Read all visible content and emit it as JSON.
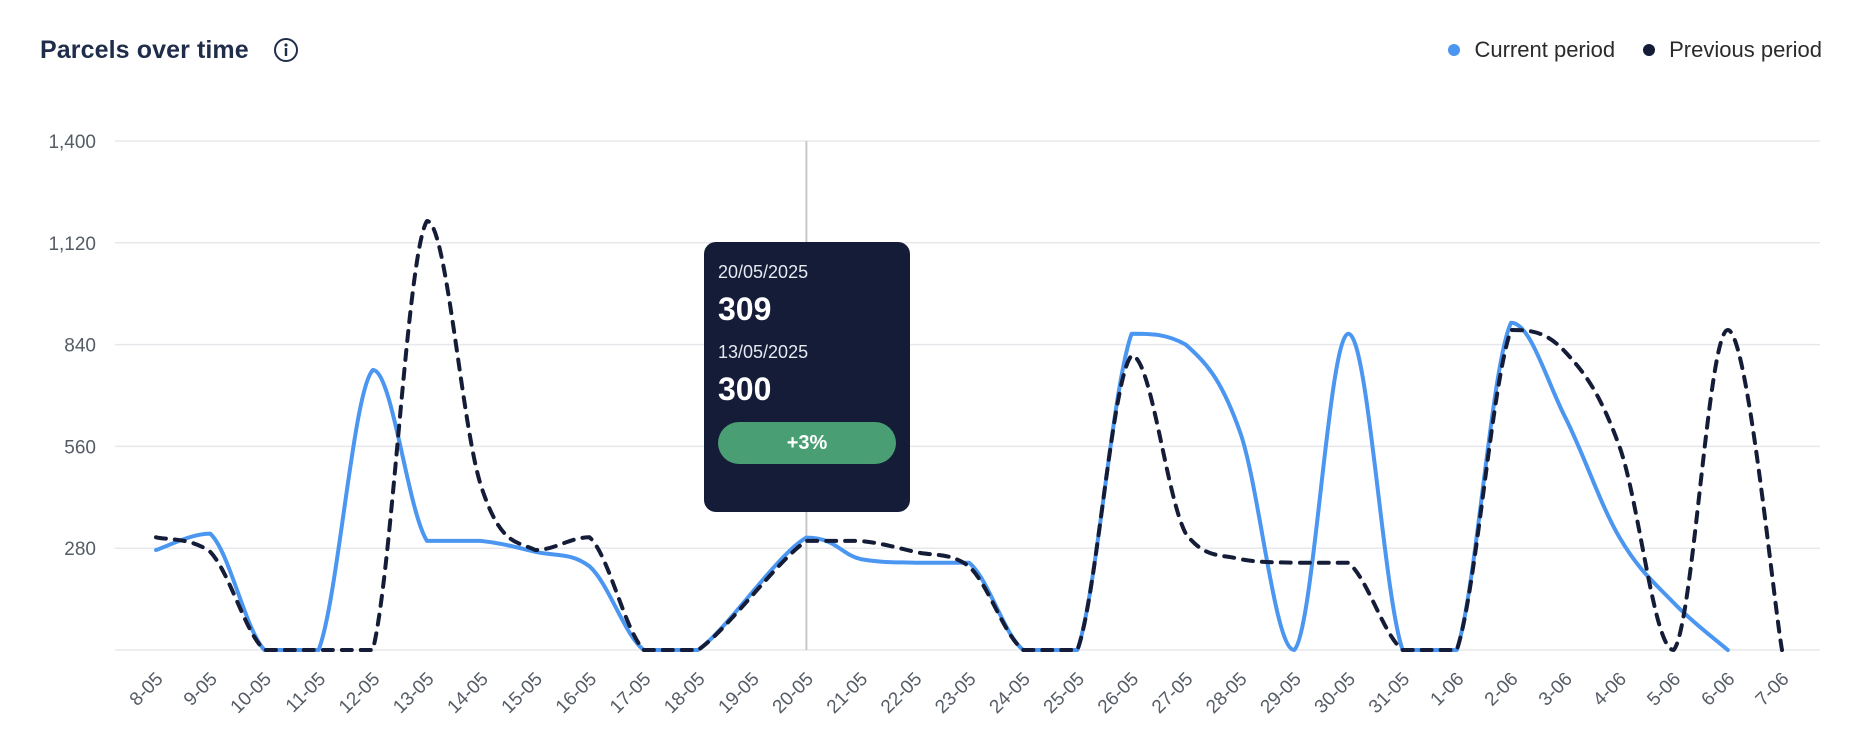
{
  "header": {
    "title": "Parcels over time",
    "info_icon": "info-icon"
  },
  "colors": {
    "current": "#4a96f0",
    "previous": "#141c38",
    "badge": "#4a9e74",
    "grid": "#e6e8eb",
    "crosshair": "#c8c8c8"
  },
  "chart_data": {
    "type": "line",
    "title": "Parcels over time",
    "xlabel": "",
    "ylabel": "",
    "ylim": [
      0,
      1400
    ],
    "yticks": [
      "1,400",
      "1,120",
      "840",
      "560",
      "280"
    ],
    "ytick_values": [
      1400,
      1120,
      840,
      560,
      280
    ],
    "grid": true,
    "legend_position": "top-right",
    "categories": [
      "8-05",
      "9-05",
      "10-05",
      "11-05",
      "12-05",
      "13-05",
      "14-05",
      "15-05",
      "16-05",
      "17-05",
      "18-05",
      "19-05",
      "20-05",
      "21-05",
      "22-05",
      "23-05",
      "24-05",
      "25-05",
      "26-05",
      "27-05",
      "28-05",
      "29-05",
      "30-05",
      "31-05",
      "1-06",
      "2-06",
      "3-06",
      "4-06",
      "5-06",
      "6-06",
      "7-06"
    ],
    "series": [
      {
        "name": "Current period",
        "style": "solid",
        "values": [
          275,
          320,
          0,
          0,
          770,
          300,
          300,
          270,
          230,
          0,
          0,
          null,
          309,
          250,
          240,
          240,
          0,
          0,
          870,
          840,
          600,
          0,
          870,
          0,
          0,
          900,
          640,
          310,
          130,
          0,
          null
        ]
      },
      {
        "name": "Previous period",
        "style": "dashed",
        "values": [
          310,
          270,
          0,
          0,
          0,
          1180,
          450,
          275,
          310,
          0,
          0,
          null,
          300,
          300,
          270,
          230,
          0,
          0,
          810,
          320,
          250,
          240,
          240,
          0,
          0,
          880,
          820,
          560,
          0,
          880,
          0
        ]
      }
    ],
    "crosshair_category": "20-05"
  },
  "legend": [
    {
      "label": "Current period",
      "color": "#4a96f0"
    },
    {
      "label": "Previous period",
      "color": "#141c38"
    }
  ],
  "tooltip": {
    "current_date": "20/05/2025",
    "current_value": "309",
    "previous_date": "13/05/2025",
    "previous_value": "300",
    "change": "+3%"
  }
}
